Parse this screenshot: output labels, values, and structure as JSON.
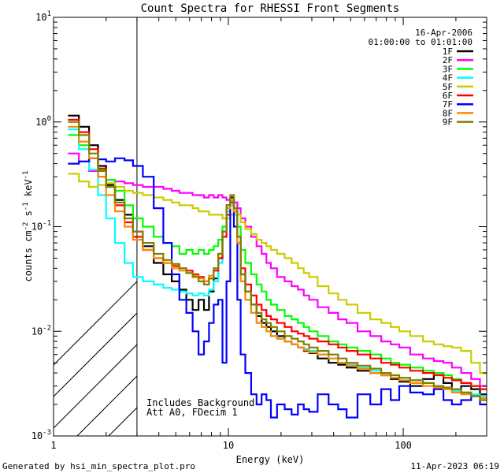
{
  "chart_data": {
    "type": "line",
    "title": "Count Spectra for RHESSI Front Segments",
    "xlabel": "Energy (keV)",
    "ylabel": "counts cm-2 s-1 keV-1",
    "xscale": "log",
    "yscale": "log",
    "xlim": [
      1,
      300
    ],
    "ylim": [
      0.001,
      10
    ],
    "x_tick_labels": [
      "1",
      "10",
      "100"
    ],
    "y_tick_labels": [
      {
        "base": "10",
        "exp": "1",
        "value": 10
      },
      {
        "base": "10",
        "exp": "0",
        "value": 1
      },
      {
        "base": "10",
        "exp": "-1",
        "value": 0.1
      },
      {
        "base": "10",
        "exp": "-2",
        "value": 0.01
      },
      {
        "base": "10",
        "exp": "-3",
        "value": 0.001
      }
    ],
    "date": "16-Apr-2006",
    "time_range": "01:00:00 to 01:01:00",
    "shaded_region_max_keV": 3,
    "annotations": [
      "Includes Background",
      "Att A0, FDecim 1"
    ],
    "x": [
      1.3,
      1.5,
      1.7,
      1.9,
      2.1,
      2.4,
      2.7,
      3.0,
      3.5,
      4.0,
      4.5,
      5.0,
      5.5,
      6.0,
      6.5,
      7.0,
      7.5,
      8.0,
      8.5,
      9.0,
      9.5,
      10.0,
      10.5,
      11.0,
      11.5,
      12,
      13,
      14,
      15,
      16,
      17,
      18,
      20,
      22,
      24,
      26,
      28,
      30,
      35,
      40,
      45,
      50,
      60,
      70,
      80,
      90,
      100,
      120,
      140,
      160,
      180,
      200,
      230,
      260,
      290
    ],
    "series": [
      {
        "name": "1F",
        "color": "#000000",
        "values": [
          1.15,
          0.9,
          0.6,
          0.38,
          0.25,
          0.18,
          0.13,
          0.09,
          0.065,
          0.045,
          0.035,
          0.03,
          0.025,
          0.02,
          0.016,
          0.02,
          0.016,
          0.024,
          0.032,
          0.05,
          0.09,
          0.16,
          0.19,
          0.15,
          0.08,
          0.035,
          0.024,
          0.018,
          0.014,
          0.012,
          0.011,
          0.01,
          0.009,
          0.008,
          0.0075,
          0.007,
          0.0065,
          0.0062,
          0.0055,
          0.005,
          0.0048,
          0.0045,
          0.0042,
          0.004,
          0.0038,
          0.0035,
          0.0033,
          0.003,
          0.0035,
          0.004,
          0.0032,
          0.0028,
          0.003,
          0.0028,
          0.0025
        ]
      },
      {
        "name": "2F",
        "color": "#ff00ff",
        "values": [
          0.5,
          0.42,
          0.34,
          0.3,
          0.28,
          0.27,
          0.26,
          0.25,
          0.24,
          0.24,
          0.23,
          0.22,
          0.21,
          0.21,
          0.2,
          0.2,
          0.19,
          0.2,
          0.19,
          0.2,
          0.19,
          0.18,
          0.18,
          0.17,
          0.15,
          0.12,
          0.1,
          0.08,
          0.065,
          0.055,
          0.045,
          0.04,
          0.033,
          0.03,
          0.027,
          0.025,
          0.022,
          0.02,
          0.017,
          0.015,
          0.013,
          0.012,
          0.01,
          0.009,
          0.008,
          0.0075,
          0.007,
          0.006,
          0.0055,
          0.0052,
          0.005,
          0.0045,
          0.004,
          0.0035,
          0.003
        ]
      },
      {
        "name": "3F",
        "color": "#00ff00",
        "values": [
          0.75,
          0.6,
          0.45,
          0.35,
          0.28,
          0.22,
          0.16,
          0.12,
          0.1,
          0.08,
          0.07,
          0.065,
          0.055,
          0.06,
          0.055,
          0.06,
          0.055,
          0.06,
          0.065,
          0.075,
          0.1,
          0.14,
          0.17,
          0.15,
          0.1,
          0.06,
          0.045,
          0.035,
          0.028,
          0.024,
          0.02,
          0.018,
          0.016,
          0.014,
          0.013,
          0.012,
          0.011,
          0.01,
          0.009,
          0.008,
          0.0075,
          0.007,
          0.0065,
          0.006,
          0.0055,
          0.005,
          0.0048,
          0.0045,
          0.0042,
          0.004,
          0.0038,
          0.0035,
          0.0032,
          0.003,
          0.0028
        ]
      },
      {
        "name": "4F",
        "color": "#00ffff",
        "values": [
          0.85,
          0.55,
          0.35,
          0.2,
          0.12,
          0.07,
          0.045,
          0.033,
          0.03,
          0.028,
          0.026,
          0.025,
          0.024,
          0.023,
          0.022,
          0.023,
          0.022,
          0.025,
          0.03,
          0.045,
          0.08,
          0.14,
          0.16,
          0.13,
          0.07,
          0.03,
          0.02,
          0.015,
          0.012,
          0.011,
          0.01,
          0.009,
          0.0085,
          0.008,
          0.0075,
          0.007,
          0.0068,
          0.0065,
          0.006,
          0.0055,
          0.005,
          0.0048,
          0.0045,
          0.0042,
          0.004,
          0.0038,
          0.0036,
          0.0034,
          0.0032,
          0.003,
          0.0028,
          0.0027,
          0.0026,
          0.0025,
          0.0024
        ]
      },
      {
        "name": "5F",
        "color": "#cccc00",
        "values": [
          0.32,
          0.27,
          0.24,
          0.25,
          0.26,
          0.24,
          0.22,
          0.21,
          0.2,
          0.19,
          0.18,
          0.17,
          0.16,
          0.16,
          0.15,
          0.14,
          0.14,
          0.13,
          0.13,
          0.13,
          0.12,
          0.12,
          0.13,
          0.14,
          0.13,
          0.11,
          0.095,
          0.085,
          0.075,
          0.07,
          0.065,
          0.06,
          0.055,
          0.05,
          0.045,
          0.04,
          0.036,
          0.033,
          0.027,
          0.023,
          0.02,
          0.018,
          0.015,
          0.013,
          0.012,
          0.011,
          0.01,
          0.009,
          0.008,
          0.0075,
          0.0072,
          0.007,
          0.0065,
          0.005,
          0.004
        ]
      },
      {
        "name": "6F",
        "color": "#ff0000",
        "values": [
          1.05,
          0.8,
          0.55,
          0.36,
          0.24,
          0.16,
          0.11,
          0.08,
          0.06,
          0.05,
          0.045,
          0.042,
          0.04,
          0.038,
          0.035,
          0.033,
          0.03,
          0.032,
          0.038,
          0.05,
          0.08,
          0.13,
          0.17,
          0.14,
          0.08,
          0.04,
          0.028,
          0.022,
          0.018,
          0.016,
          0.014,
          0.013,
          0.012,
          0.011,
          0.01,
          0.0095,
          0.009,
          0.0085,
          0.008,
          0.0075,
          0.007,
          0.0065,
          0.006,
          0.0055,
          0.005,
          0.0048,
          0.0045,
          0.0042,
          0.004,
          0.0038,
          0.0036,
          0.0034,
          0.0032,
          0.003,
          0.0028
        ]
      },
      {
        "name": "7F",
        "color": "#0000ff",
        "values": [
          0.4,
          0.42,
          0.45,
          0.44,
          0.42,
          0.45,
          0.43,
          0.38,
          0.3,
          0.15,
          0.07,
          0.035,
          0.02,
          0.015,
          0.01,
          0.006,
          0.008,
          0.012,
          0.018,
          0.02,
          0.005,
          0.03,
          0.18,
          0.1,
          0.02,
          0.006,
          0.004,
          0.0025,
          0.002,
          0.0025,
          0.0022,
          0.0015,
          0.002,
          0.0018,
          0.0016,
          0.002,
          0.0018,
          0.0017,
          0.0025,
          0.002,
          0.0018,
          0.0015,
          0.0025,
          0.002,
          0.0028,
          0.0022,
          0.003,
          0.0026,
          0.0025,
          0.0028,
          0.0022,
          0.002,
          0.0022,
          0.0024,
          0.002
        ]
      },
      {
        "name": "8F",
        "color": "#ff8800",
        "values": [
          0.9,
          0.65,
          0.45,
          0.3,
          0.2,
          0.14,
          0.1,
          0.075,
          0.06,
          0.05,
          0.045,
          0.04,
          0.038,
          0.036,
          0.034,
          0.032,
          0.03,
          0.034,
          0.04,
          0.055,
          0.09,
          0.15,
          0.18,
          0.14,
          0.07,
          0.03,
          0.02,
          0.015,
          0.012,
          0.011,
          0.01,
          0.009,
          0.0085,
          0.008,
          0.0075,
          0.007,
          0.0066,
          0.0063,
          0.006,
          0.0055,
          0.005,
          0.0047,
          0.0044,
          0.004,
          0.0038,
          0.0036,
          0.0034,
          0.0032,
          0.003,
          0.0029,
          0.0028,
          0.0026,
          0.0025,
          0.0024,
          0.0023
        ]
      },
      {
        "name": "9F",
        "color": "#808000",
        "values": [
          1.0,
          0.75,
          0.5,
          0.34,
          0.24,
          0.17,
          0.12,
          0.09,
          0.07,
          0.055,
          0.048,
          0.044,
          0.04,
          0.036,
          0.033,
          0.03,
          0.028,
          0.032,
          0.04,
          0.055,
          0.09,
          0.16,
          0.2,
          0.15,
          0.08,
          0.035,
          0.024,
          0.018,
          0.015,
          0.013,
          0.012,
          0.011,
          0.01,
          0.009,
          0.0085,
          0.008,
          0.0075,
          0.007,
          0.0065,
          0.006,
          0.0055,
          0.005,
          0.0047,
          0.0044,
          0.004,
          0.0038,
          0.0036,
          0.0034,
          0.0032,
          0.003,
          0.0029,
          0.0028,
          0.0026,
          0.0024,
          0.0022
        ]
      }
    ]
  },
  "footer": {
    "left": "Generated by hsi_min_spectra_plot.pro",
    "right": "11-Apr-2023 06:19"
  }
}
